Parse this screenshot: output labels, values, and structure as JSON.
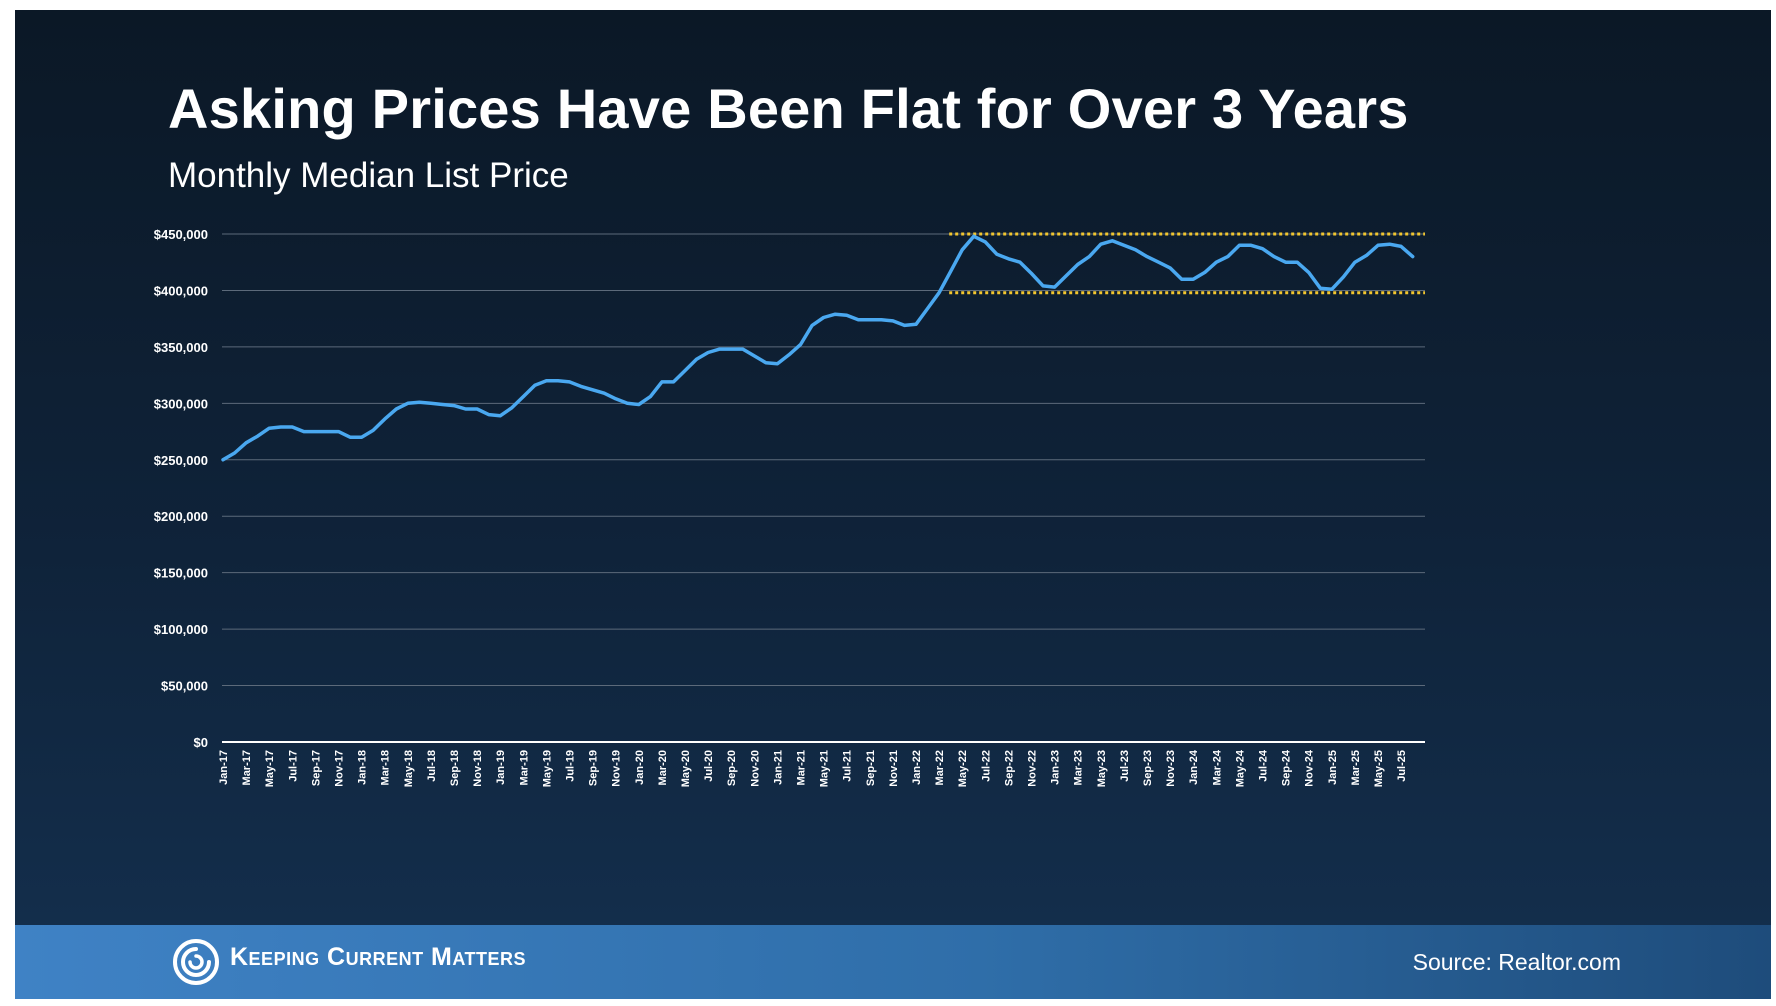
{
  "slide": {
    "title": "Asking Prices Have Been Flat for Over 3 Years",
    "subtitle": "Monthly Median List Price"
  },
  "footer": {
    "brand": "Keeping Current Matters",
    "source": "Source: Realtor.com"
  },
  "colors": {
    "line": "#4aa8f0",
    "band": "#f2c62f",
    "grid": "#5c6a7a",
    "axis": "#ffffff",
    "text": "#ffffff"
  },
  "chart_data": {
    "type": "line",
    "title": "Asking Prices Have Been Flat for Over 3 Years",
    "subtitle": "Monthly Median List Price",
    "xlabel": "",
    "ylabel": "",
    "ylim": [
      0,
      450000
    ],
    "y_ticks": [
      0,
      50000,
      100000,
      150000,
      200000,
      250000,
      300000,
      350000,
      400000,
      450000
    ],
    "y_tick_labels": [
      "$0",
      "$50,000",
      "$100,000",
      "$150,000",
      "$200,000",
      "$250,000",
      "$300,000",
      "$350,000",
      "$400,000",
      "$450,000"
    ],
    "grid": true,
    "legend": "none",
    "x": [
      "Jan-17",
      "Feb-17",
      "Mar-17",
      "Apr-17",
      "May-17",
      "Jun-17",
      "Jul-17",
      "Aug-17",
      "Sep-17",
      "Oct-17",
      "Nov-17",
      "Dec-17",
      "Jan-18",
      "Feb-18",
      "Mar-18",
      "Apr-18",
      "May-18",
      "Jun-18",
      "Jul-18",
      "Aug-18",
      "Sep-18",
      "Oct-18",
      "Nov-18",
      "Dec-18",
      "Jan-19",
      "Feb-19",
      "Mar-19",
      "Apr-19",
      "May-19",
      "Jun-19",
      "Jul-19",
      "Aug-19",
      "Sep-19",
      "Oct-19",
      "Nov-19",
      "Dec-19",
      "Jan-20",
      "Feb-20",
      "Mar-20",
      "Apr-20",
      "May-20",
      "Jun-20",
      "Jul-20",
      "Aug-20",
      "Sep-20",
      "Oct-20",
      "Nov-20",
      "Dec-20",
      "Jan-21",
      "Feb-21",
      "Mar-21",
      "Apr-21",
      "May-21",
      "Jun-21",
      "Jul-21",
      "Aug-21",
      "Sep-21",
      "Oct-21",
      "Nov-21",
      "Dec-21",
      "Jan-22",
      "Feb-22",
      "Mar-22",
      "Apr-22",
      "May-22",
      "Jun-22",
      "Jul-22",
      "Aug-22",
      "Sep-22",
      "Oct-22",
      "Nov-22",
      "Dec-22",
      "Jan-23",
      "Feb-23",
      "Mar-23",
      "Apr-23",
      "May-23",
      "Jun-23",
      "Jul-23",
      "Aug-23",
      "Sep-23",
      "Oct-23",
      "Nov-23",
      "Dec-23",
      "Jan-24",
      "Feb-24",
      "Mar-24",
      "Apr-24",
      "May-24",
      "Jun-24",
      "Jul-24",
      "Aug-24",
      "Sep-24",
      "Oct-24",
      "Nov-24",
      "Dec-24",
      "Jan-25",
      "Feb-25",
      "Mar-25",
      "Apr-25",
      "May-25",
      "Jun-25",
      "Jul-25",
      "Aug-25"
    ],
    "x_tick_labels": [
      "Jan-17",
      "Mar-17",
      "May-17",
      "Jul-17",
      "Sep-17",
      "Nov-17",
      "Jan-18",
      "Mar-18",
      "May-18",
      "Jul-18",
      "Sep-18",
      "Nov-18",
      "Jan-19",
      "Mar-19",
      "May-19",
      "Jul-19",
      "Sep-19",
      "Nov-19",
      "Jan-20",
      "Mar-20",
      "May-20",
      "Jul-20",
      "Sep-20",
      "Nov-20",
      "Jan-21",
      "Mar-21",
      "May-21",
      "Jul-21",
      "Sep-21",
      "Nov-21",
      "Jan-22",
      "Mar-22",
      "May-22",
      "Jul-22",
      "Sep-22",
      "Nov-22",
      "Jan-23",
      "Mar-23",
      "May-23",
      "Jul-23",
      "Sep-23",
      "Nov-23",
      "Jan-24",
      "Mar-24",
      "May-24",
      "Jul-24",
      "Sep-24",
      "Nov-24",
      "Jan-25",
      "Mar-25",
      "May-25",
      "Jul-25"
    ],
    "series": [
      {
        "name": "Monthly Median List Price",
        "values": [
          250000,
          256000,
          265000,
          271000,
          278000,
          279000,
          279000,
          275000,
          275000,
          275000,
          275000,
          270000,
          270000,
          276000,
          286000,
          295000,
          300000,
          301000,
          300000,
          299000,
          298000,
          295000,
          295000,
          290000,
          289000,
          296000,
          306000,
          316000,
          320000,
          320000,
          319000,
          315000,
          312000,
          309000,
          304000,
          300000,
          299000,
          306000,
          319000,
          319000,
          329000,
          339000,
          345000,
          348000,
          348000,
          348000,
          342000,
          336000,
          335000,
          343000,
          352000,
          369000,
          376000,
          379000,
          378000,
          374000,
          374000,
          374000,
          373000,
          369000,
          370000,
          384000,
          398000,
          417000,
          436000,
          448000,
          443000,
          432000,
          428000,
          425000,
          415000,
          404000,
          403000,
          413000,
          423000,
          430000,
          441000,
          444000,
          440000,
          436000,
          430000,
          425000,
          420000,
          410000,
          410000,
          416000,
          425000,
          430000,
          440000,
          440000,
          437000,
          430000,
          425000,
          425000,
          416000,
          402000,
          401000,
          412000,
          425000,
          431000,
          440000,
          441000,
          439000,
          430000
        ]
      }
    ],
    "bands": [
      {
        "name": "upper",
        "value": 450000,
        "from": "May-22",
        "to": "Aug-25"
      },
      {
        "name": "lower",
        "value": 398000,
        "from": "May-22",
        "to": "Aug-25"
      }
    ]
  }
}
